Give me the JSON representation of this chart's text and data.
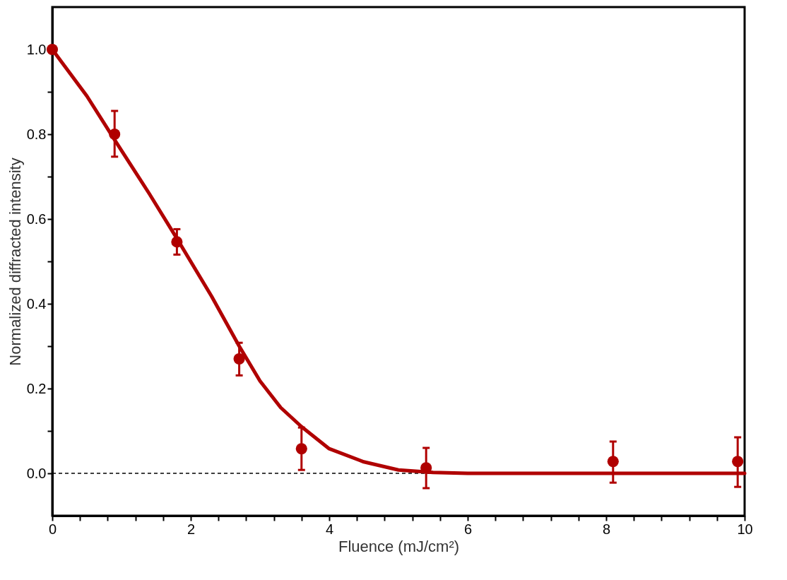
{
  "chart_data": {
    "type": "scatter",
    "xlabel": "Fluence (mJ/cm²)",
    "ylabel": "Normalized diffracted intensity",
    "xlim": [
      0,
      10
    ],
    "ylim": [
      -0.1,
      1.1
    ],
    "xticks": [
      0,
      {
        "value": 0.4,
        "label": null
      },
      {
        "value": 0.8,
        "label": null
      },
      {
        "value": 1.2,
        "label": null
      },
      {
        "value": 1.6,
        "label": null
      },
      2,
      {
        "value": 2.4,
        "label": null
      },
      {
        "value": 2.8,
        "label": null
      },
      {
        "value": 3.2,
        "label": null
      },
      {
        "value": 3.6,
        "label": null
      },
      4,
      {
        "value": 4.4,
        "label": null
      },
      {
        "value": 4.8,
        "label": null
      },
      {
        "value": 5.2,
        "label": null
      },
      {
        "value": 5.6,
        "label": null
      },
      6,
      {
        "value": 6.4,
        "label": null
      },
      {
        "value": 6.8,
        "label": null
      },
      {
        "value": 7.2,
        "label": null
      },
      {
        "value": 7.6,
        "label": null
      },
      8,
      {
        "value": 8.4,
        "label": null
      },
      {
        "value": 8.8,
        "label": null
      },
      {
        "value": 9.2,
        "label": null
      },
      {
        "value": 9.6,
        "label": null
      },
      10
    ],
    "yticks": [
      {
        "value": 0,
        "label": "0.0"
      },
      {
        "value": 0.1,
        "label": null
      },
      {
        "value": 0.2,
        "label": "0.2"
      },
      {
        "value": 0.3,
        "label": null
      },
      {
        "value": 0.4,
        "label": "0.4"
      },
      {
        "value": 0.5,
        "label": null
      },
      {
        "value": 0.6,
        "label": "0.6"
      },
      {
        "value": 0.7,
        "label": null
      },
      {
        "value": 0.8,
        "label": "0.8"
      },
      {
        "value": 0.9,
        "label": null
      },
      {
        "value": 1.0,
        "label": "1.0"
      }
    ],
    "grid": false,
    "legend": false,
    "ref_lines": [
      {
        "axis": "y",
        "value": 0,
        "color": "#000000",
        "line_style": "dashed"
      }
    ],
    "series": [
      {
        "type": "line",
        "color": "#b00000",
        "marker": "none",
        "line_style": "solid",
        "x": [
          0,
          0.5,
          0.9,
          1.4,
          1.8,
          2.3,
          2.7,
          3.0,
          3.3,
          3.6,
          4.0,
          4.5,
          5.0,
          5.5,
          6.0,
          7.0,
          8.0,
          9.0,
          10.0
        ],
        "values": [
          1.0,
          0.89,
          0.787,
          0.66,
          0.554,
          0.418,
          0.3,
          0.218,
          0.155,
          0.11,
          0.058,
          0.027,
          0.008,
          0.002,
          0.0,
          0.0,
          0.0,
          0.0,
          0.0
        ]
      },
      {
        "type": "scatter",
        "color": "#b00000",
        "marker": "circle",
        "x": [
          0,
          0.9,
          1.8,
          2.7,
          3.6,
          5.4,
          8.1,
          9.9
        ],
        "values": [
          1.0,
          0.8,
          0.546,
          0.27,
          0.058,
          0.013,
          0.028,
          0.028
        ],
        "errors": [
          null,
          [
            0.747,
            0.855
          ],
          [
            0.516,
            0.576
          ],
          [
            0.231,
            0.308
          ],
          [
            0.008,
            0.108
          ],
          [
            -0.035,
            0.06
          ],
          [
            -0.022,
            0.075
          ],
          [
            -0.032,
            0.085
          ]
        ]
      }
    ]
  }
}
